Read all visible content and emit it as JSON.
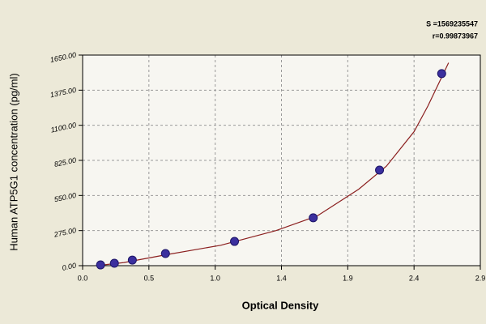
{
  "chart_data": {
    "type": "scatter",
    "annotations": [
      "S =1569235547",
      "r=0.99873967"
    ],
    "x_label": "Optical Density",
    "y_label": "Human ATP5G1 concentration (pg/ml)",
    "x": [
      0.13,
      0.23,
      0.36,
      0.6,
      1.1,
      1.67,
      2.15,
      2.6
    ],
    "values": [
      6,
      19,
      44,
      95,
      190,
      375,
      749,
      1505
    ],
    "color": "#3b2f9e",
    "curve": {
      "color": "#8b1f1f",
      "x": [
        0.1,
        0.3,
        0.6,
        1.0,
        1.4,
        1.7,
        2.0,
        2.2,
        2.4,
        2.5,
        2.65
      ],
      "y": [
        0,
        25,
        85,
        160,
        275,
        390,
        600,
        780,
        1050,
        1250,
        1590
      ]
    },
    "xlim": [
      0,
      2.88
    ],
    "ylim": [
      0,
      1650
    ],
    "xticks": [
      {
        "value": 0,
        "label": "0.0"
      },
      {
        "value": 0.48,
        "label": "0.5"
      },
      {
        "value": 0.96,
        "label": "1.0"
      },
      {
        "value": 1.44,
        "label": "1.4"
      },
      {
        "value": 1.92,
        "label": "1.9"
      },
      {
        "value": 2.4,
        "label": "2.4"
      },
      {
        "value": 2.88,
        "label": "2.9"
      }
    ],
    "yticks": [
      {
        "value": 0,
        "label": "0.00"
      },
      {
        "value": 275,
        "label": "275.00"
      },
      {
        "value": 550,
        "label": "550.00"
      },
      {
        "value": 825,
        "label": "825.00"
      },
      {
        "value": 1100,
        "label": "1100.00"
      },
      {
        "value": 1375,
        "label": "1375.00"
      },
      {
        "value": 1650,
        "label": "1650.00"
      }
    ],
    "grid": true
  }
}
